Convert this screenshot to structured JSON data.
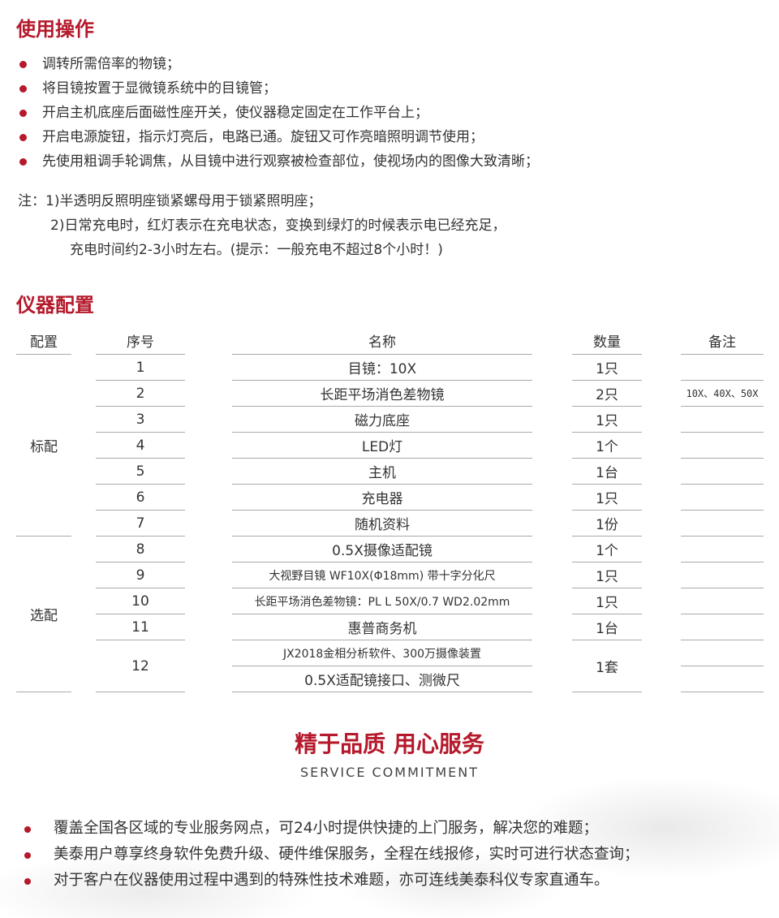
{
  "usage": {
    "title": "使用操作",
    "bullets": [
      "调转所需倍率的物镜；",
      "将目镜按置于显微镜系统中的目镜管；",
      "开启主机底座后面磁性座开关，使仪器稳定固定在工作平台上；",
      "开启电源旋钮，指示灯亮后，电路已通。旋钮又可作亮暗照明调节使用；",
      "先使用粗调手轮调焦，从目镜中进行观察被检查部位，使视场内的图像大致清晰；"
    ],
    "notes": [
      "注：1)半透明反照明座锁紧螺母用于锁紧照明座；",
      "2)日常充电时，红灯表示在充电状态，变换到绿灯的时候表示电已经充足，",
      "充电时间约2-3小时左右。(提示：一般充电不超过8个小时！)"
    ]
  },
  "config": {
    "title": "仪器配置",
    "headers": [
      "配置",
      "序号",
      "名称",
      "数量",
      "备注"
    ],
    "groups": [
      "标配",
      "选配"
    ],
    "rows": [
      {
        "no": "1",
        "name": "目镜：10X",
        "qty": "1只",
        "remark": ""
      },
      {
        "no": "2",
        "name": "长距平场消色差物镜",
        "qty": "2只",
        "remark": "10X、40X、50X"
      },
      {
        "no": "3",
        "name": "磁力底座",
        "qty": "1只",
        "remark": ""
      },
      {
        "no": "4",
        "name": "LED灯",
        "qty": "1个",
        "remark": ""
      },
      {
        "no": "5",
        "name": "主机",
        "qty": "1台",
        "remark": ""
      },
      {
        "no": "6",
        "name": "充电器",
        "qty": "1只",
        "remark": ""
      },
      {
        "no": "7",
        "name": "随机资料",
        "qty": "1份",
        "remark": ""
      },
      {
        "no": "8",
        "name": "0.5X摄像适配镜",
        "qty": "1个",
        "remark": ""
      },
      {
        "no": "9",
        "name": "大视野目镜 WF10X(Φ18mm) 带十字分化尺",
        "qty": "1只",
        "remark": ""
      },
      {
        "no": "10",
        "name": "长距平场消色差物镜：PL L 50X/0.7 WD2.02mm",
        "qty": "1只",
        "remark": ""
      },
      {
        "no": "11",
        "name": "惠普商务机",
        "qty": "1台",
        "remark": ""
      },
      {
        "no": "12",
        "name": "JX2018金相分析软件、300万摄像装置",
        "name2": "0.5X适配镜接口、测微尺",
        "qty": "1套",
        "remark": ""
      }
    ]
  },
  "service": {
    "title": "精于品质 用心服务",
    "subtitle": "SERVICE COMMITMENT",
    "bullets": [
      "覆盖全国各区域的专业服务网点，可24小时提供快捷的上门服务，解决您的难题；",
      "美泰用户尊享终身软件免费升级、硬件维保服务，全程在线报修，实时可进行状态查询；",
      "对于客户在仪器使用过程中遇到的特殊性技术难题，亦可连线美泰科仪专家直通车。"
    ]
  },
  "colors": {
    "accent": "#b5192b"
  }
}
